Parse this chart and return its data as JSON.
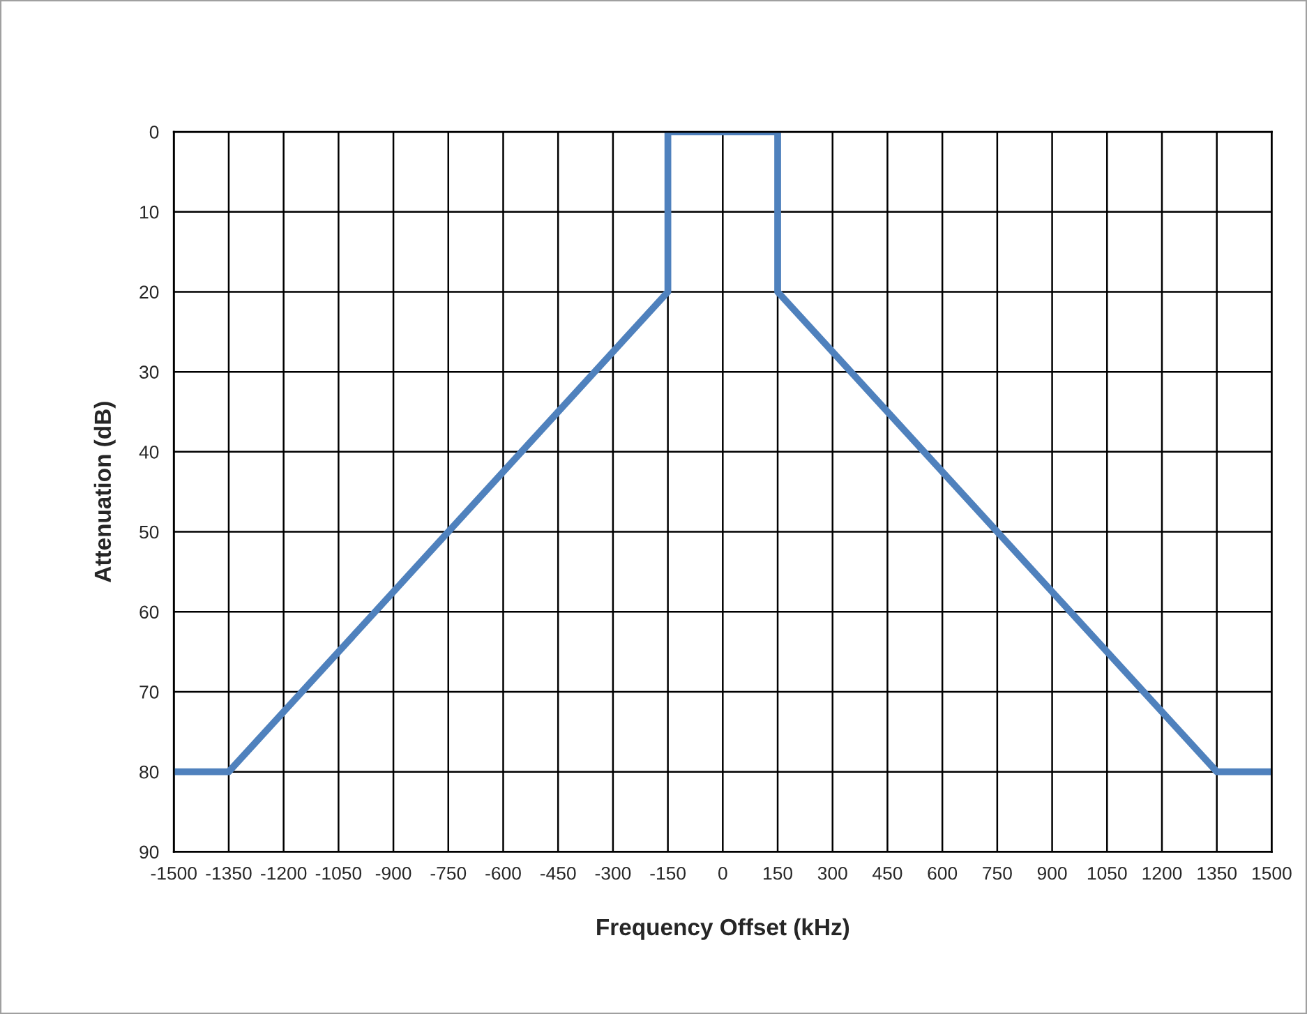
{
  "chart_data": {
    "type": "line",
    "xlabel": "Frequency Offset (kHz)",
    "ylabel": "Attenuation (dB)",
    "x": [
      -1500,
      -1350,
      -150,
      -150,
      150,
      150,
      1350,
      1500
    ],
    "series": [
      {
        "color": "#4f81bd",
        "values": [
          80,
          80,
          20,
          0,
          0,
          20,
          80,
          80
        ]
      }
    ],
    "xlim": [
      -1500,
      1500
    ],
    "xticks": [
      -1500,
      -1350,
      -1200,
      -1050,
      -900,
      -750,
      -600,
      -450,
      -300,
      -150,
      0,
      150,
      300,
      450,
      600,
      750,
      900,
      1050,
      1200,
      1350,
      1500
    ],
    "ylim": [
      90,
      0
    ],
    "yticks": [
      0,
      10,
      20,
      30,
      40,
      50,
      60,
      70,
      80,
      90
    ],
    "grid": true,
    "marker": "none",
    "line_style": "solid"
  }
}
